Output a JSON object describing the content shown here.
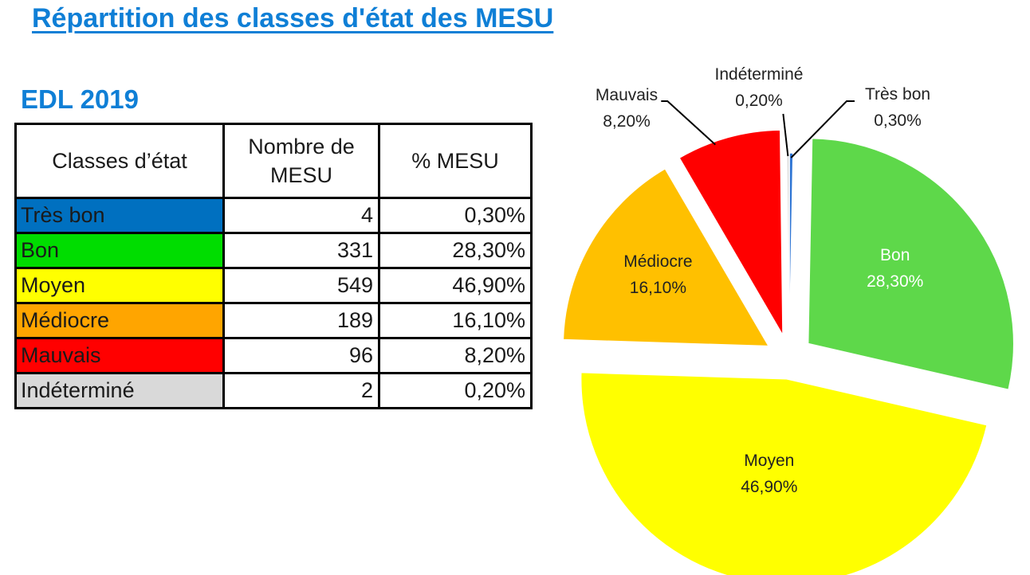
{
  "title": "Répartition des classes d'état des MESU",
  "subtitle": "EDL 2019",
  "table": {
    "headers": {
      "col1": "Classes d’état",
      "col2_line1": "Nombre de",
      "col2_line2": "MESU",
      "col3": "% MESU"
    },
    "rows": [
      {
        "label": "Très bon",
        "count": "4",
        "percent": "0,30%",
        "color": "#0070c0"
      },
      {
        "label": "Bon",
        "count": "331",
        "percent": "28,30%",
        "color": "#00dd00"
      },
      {
        "label": "Moyen",
        "count": "549",
        "percent": "46,90%",
        "color": "#ffff00"
      },
      {
        "label": "Médiocre",
        "count": "189",
        "percent": "16,10%",
        "color": "#ffa500"
      },
      {
        "label": "Mauvais",
        "count": "96",
        "percent": "8,20%",
        "color": "#ff0000"
      },
      {
        "label": "Indéterminé",
        "count": "2",
        "percent": "0,20%",
        "color": "#d9d9d9"
      }
    ]
  },
  "chart_data": {
    "type": "pie",
    "start_angle_deg": 0,
    "direction": "clockwise",
    "exploded": true,
    "slices": [
      {
        "name": "Très bon",
        "value": 0.3,
        "label": "0,30%",
        "color": "#2e75d4"
      },
      {
        "name": "Bon",
        "value": 28.3,
        "label": "28,30%",
        "color": "#5ed84a"
      },
      {
        "name": "Moyen",
        "value": 46.9,
        "label": "46,90%",
        "color": "#ffff00"
      },
      {
        "name": "Médiocre",
        "value": 16.1,
        "label": "16,10%",
        "color": "#ffc000"
      },
      {
        "name": "Mauvais",
        "value": 8.2,
        "label": "8,20%",
        "color": "#ff0000"
      },
      {
        "name": "Indéterminé",
        "value": 0.2,
        "label": "0,20%",
        "color": "#d9d9d9"
      }
    ]
  }
}
